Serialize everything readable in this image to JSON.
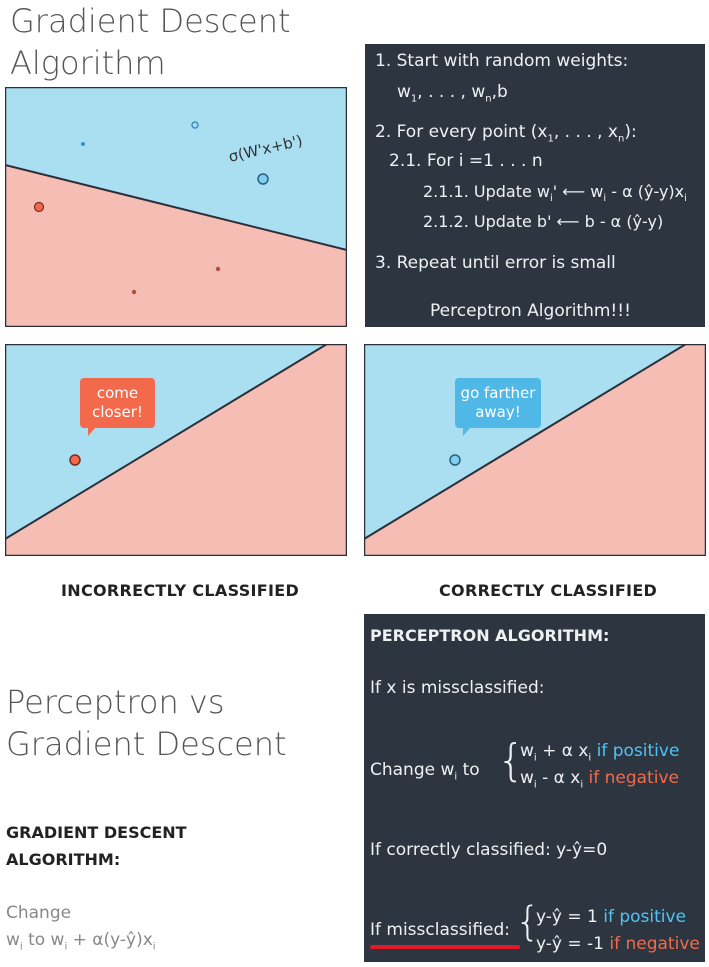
{
  "header": {
    "title_line1": "Gradient Descent",
    "title_line2": "Algorithm"
  },
  "plot_top": {
    "formula": "σ(W'x+b')"
  },
  "algo_panel": {
    "step1": "1. Start with random weights:",
    "step1_vars_a": "w",
    "step1_vars_sub1": "1",
    "step1_vars_b": ", . . . , w",
    "step1_vars_subn": "n",
    "step1_vars_c": ",b",
    "step2_a": "2. For every point (x",
    "step2_sub1": "1",
    "step2_b": ", . . . , x",
    "step2_subn": "n",
    "step2_c": "):",
    "step21": "2.1. For i =1 . . . n",
    "step211_a": "2.1.1. Update w",
    "step211_sub": "i",
    "step211_b": "' ⟵   w",
    "step211_c": " - α (ŷ-y)x",
    "step212": "2.1.2. Update b' ⟵   b - α (ŷ-y)",
    "step3": "3. Repeat until error is small",
    "footer": "Perceptron Algorithm!!!"
  },
  "left_plot": {
    "bubble_line1": "come",
    "bubble_line2": "closer!",
    "caption": "INCORRECTLY CLASSIFIED"
  },
  "right_plot": {
    "bubble_line1": "go farther",
    "bubble_line2": "away!",
    "caption": "CORRECTLY CLASSIFIED"
  },
  "section2": {
    "title_line1": "Perceptron vs",
    "title_line2": "Gradient Descent",
    "gd_heading_line1": "GRADIENT DESCENT",
    "gd_heading_line2": "ALGORITHM:",
    "gd_text_line1": "Change",
    "gd_text_a": "w",
    "gd_text_sub1": "i",
    "gd_text_b": " to w",
    "gd_text_c": " + α(y-ŷ)x"
  },
  "perceptron_panel": {
    "heading": "PERCEPTRON ALGORITHM:",
    "miss": "If x is missclassified:",
    "change_a": "Change w",
    "change_sub": "i",
    "change_b": " to",
    "case1_a": "w",
    "case1_b": " + α x",
    "case1_cond": "if positive",
    "case2_a": "w",
    "case2_b": " - α x",
    "case2_cond": "if negative",
    "correct": "If correctly classified: y-ŷ=0",
    "missclass": "If missclassified:",
    "mc1": "y-ŷ = 1",
    "mc1_cond": "if positive",
    "mc2": "y-ŷ = -1",
    "mc2_cond": "if negative"
  },
  "colors": {
    "region_blue": "#a9dff0",
    "region_red": "#f5bdb3",
    "panel_bg": "#2d3640",
    "accent_blue": "#4fc3f7",
    "accent_red": "#f26a4b",
    "underline_red": "#e21a25"
  }
}
